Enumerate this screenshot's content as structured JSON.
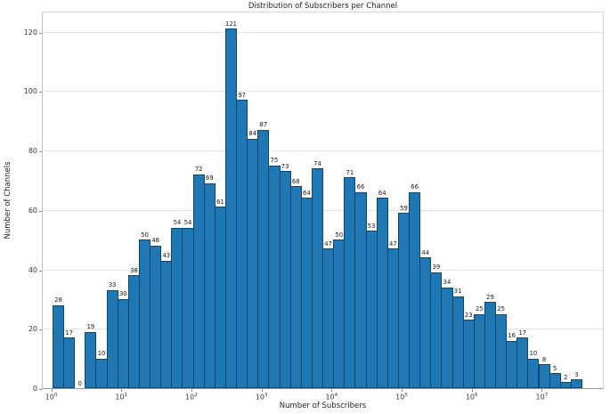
{
  "chart_data": {
    "type": "bar",
    "subtype": "histogram-log-x",
    "title": "Distribution of Subscribers per Channel",
    "xlabel": "Number of Subscribers",
    "ylabel": "Number of Channels",
    "x_scale": "log",
    "x_tick_labels": [
      "10⁰",
      "10¹",
      "10²",
      "10³",
      "10⁴",
      "10⁵",
      "10⁶",
      "10⁷"
    ],
    "x_tick_exponents": [
      0,
      1,
      2,
      3,
      4,
      5,
      6,
      7
    ],
    "y_ticks": [
      0,
      20,
      40,
      60,
      80,
      100,
      120
    ],
    "ylim": [
      0,
      127
    ],
    "n_bins": 49,
    "x_bins_start": 1,
    "x_range_decades": [
      0,
      7.55
    ],
    "values": [
      28,
      17,
      0,
      19,
      10,
      33,
      30,
      38,
      50,
      48,
      43,
      54,
      54,
      72,
      69,
      61,
      121,
      97,
      84,
      87,
      75,
      73,
      68,
      64,
      74,
      47,
      50,
      71,
      66,
      53,
      64,
      47,
      59,
      66,
      44,
      39,
      34,
      31,
      23,
      25,
      29,
      25,
      16,
      17,
      10,
      8,
      5,
      2,
      3
    ],
    "bar_labels_shown": true,
    "grid": true,
    "grid_axis": "y",
    "colors": {
      "bar_fill": "#1f77b4",
      "bar_edge": "#0f4568",
      "gridline": "#e3e3e3",
      "text": "#1f1f1f",
      "background": "#ffffff"
    },
    "legend": null
  }
}
